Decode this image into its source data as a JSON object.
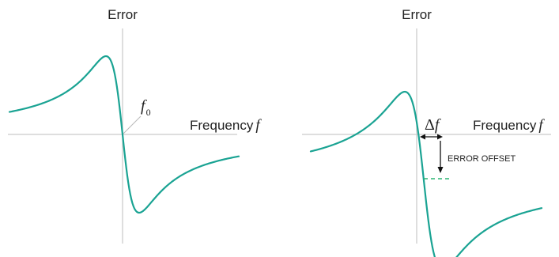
{
  "chart_data": [
    {
      "type": "line",
      "title": "",
      "ylabel": "Error",
      "xlabel": "Frequency",
      "xlabel_symbol": "f",
      "annotation": {
        "symbol": "f",
        "subscript": "0"
      },
      "grid": false,
      "legend": "none",
      "curve_color": "#1aa393",
      "axis_color": "#c9c9c9"
    },
    {
      "type": "line",
      "title": "",
      "ylabel": "Error",
      "xlabel": "Frequency",
      "xlabel_symbol": "f",
      "shift_annotation": {
        "prefix": "Δ",
        "symbol": "f"
      },
      "offset_annotation": "ERROR OFFSET",
      "grid": false,
      "legend": "none",
      "curve_color": "#1aa393",
      "offset_line_color": "#2bb673",
      "axis_color": "#c9c9c9"
    }
  ]
}
